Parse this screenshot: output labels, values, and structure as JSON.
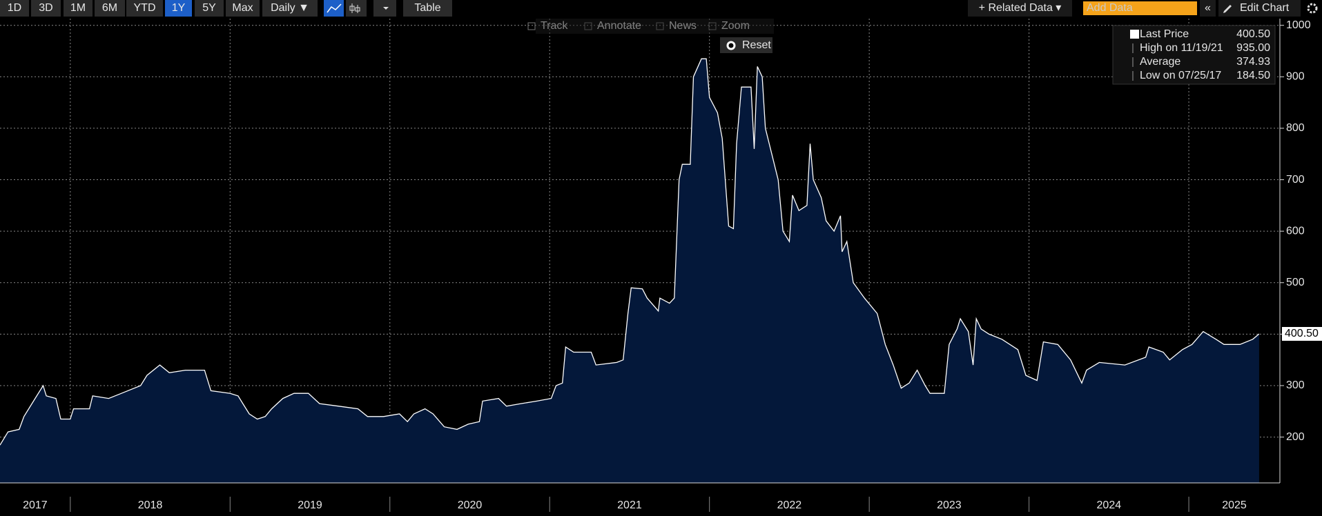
{
  "toolbar": {
    "ranges": [
      "1D",
      "3D",
      "1M",
      "6M",
      "YTD",
      "1Y",
      "5Y",
      "Max"
    ],
    "frequency": "Daily ▼",
    "table": "Table",
    "related": "+ Related Data ▾",
    "add_data": "Add Data",
    "collapse": "«",
    "edit": "Edit Chart",
    "tools": [
      "Track",
      "Annotate",
      "News",
      "Zoom"
    ],
    "reset": "Reset"
  },
  "chart_data": {
    "type": "area",
    "color": "#ffffff",
    "fill": "#04183a",
    "grid": true,
    "x": [
      2017.56,
      2017.61,
      2017.68,
      2017.71,
      2017.78,
      2017.83,
      2017.85,
      2017.91,
      2017.94,
      2018.0,
      2018.02,
      2018.12,
      2018.14,
      2018.24,
      2018.32,
      2018.44,
      2018.48,
      2018.56,
      2018.62,
      2018.72,
      2018.84,
      2018.88,
      2019.0,
      2019.05,
      2019.08,
      2019.12,
      2019.17,
      2019.22,
      2019.26,
      2019.33,
      2019.4,
      2019.49,
      2019.56,
      2019.68,
      2019.8,
      2019.86,
      2019.96,
      2020.06,
      2020.11,
      2020.15,
      2020.22,
      2020.27,
      2020.34,
      2020.42,
      2020.49,
      2020.56,
      2020.58,
      2020.68,
      2020.73,
      2020.82,
      2020.92,
      2021.01,
      2021.04,
      2021.08,
      2021.1,
      2021.15,
      2021.26,
      2021.29,
      2021.42,
      2021.46,
      2021.49,
      2021.51,
      2021.58,
      2021.61,
      2021.68,
      2021.69,
      2021.75,
      2021.78,
      2021.81,
      2021.83,
      2021.88,
      2021.9,
      2021.95,
      2021.98,
      2022.0,
      2022.05,
      2022.08,
      2022.12,
      2022.15,
      2022.17,
      2022.2,
      2022.26,
      2022.28,
      2022.3,
      2022.33,
      2022.35,
      2022.43,
      2022.46,
      2022.5,
      2022.52,
      2022.56,
      2022.61,
      2022.63,
      2022.65,
      2022.7,
      2022.73,
      2022.78,
      2022.82,
      2022.83,
      2022.86,
      2022.9,
      2022.97,
      2023.05,
      2023.1,
      2023.15,
      2023.2,
      2023.25,
      2023.3,
      2023.35,
      2023.38,
      2023.47,
      2023.5,
      2023.55,
      2023.57,
      2023.62,
      2023.65,
      2023.67,
      2023.7,
      2023.75,
      2023.83,
      2023.93,
      2023.98,
      2024.05,
      2024.09,
      2024.18,
      2024.26,
      2024.33,
      2024.36,
      2024.44,
      2024.6,
      2024.73,
      2024.75,
      2024.84,
      2024.88,
      2024.96,
      2025.02,
      2025.09,
      2025.17,
      2025.22,
      2025.32,
      2025.4,
      2025.44
    ],
    "values": [
      184.5,
      210,
      215,
      240,
      275,
      300,
      280,
      275,
      235,
      235,
      255,
      255,
      280,
      275,
      285,
      300,
      320,
      340,
      325,
      330,
      330,
      290,
      285,
      280,
      265,
      245,
      235,
      240,
      255,
      275,
      285,
      285,
      265,
      260,
      255,
      240,
      240,
      245,
      230,
      245,
      255,
      245,
      220,
      215,
      225,
      230,
      270,
      275,
      260,
      265,
      270,
      275,
      300,
      305,
      375,
      365,
      365,
      340,
      345,
      350,
      440,
      490,
      488,
      470,
      445,
      470,
      460,
      470,
      700,
      730,
      730,
      900,
      935,
      935,
      860,
      830,
      780,
      610,
      605,
      770,
      880,
      880,
      760,
      920,
      900,
      800,
      700,
      600,
      580,
      670,
      640,
      650,
      770,
      700,
      665,
      620,
      600,
      630,
      560,
      580,
      500,
      470,
      440,
      380,
      340,
      295,
      305,
      330,
      300,
      285,
      285,
      380,
      410,
      430,
      405,
      340,
      430,
      410,
      400,
      390,
      370,
      320,
      310,
      385,
      380,
      350,
      305,
      330,
      345,
      340,
      355,
      375,
      365,
      350,
      370,
      380,
      405,
      390,
      380,
      380,
      390,
      400.5
    ],
    "xlim": [
      2017.56,
      2025.57
    ],
    "ylim": [
      111,
      1013
    ],
    "yticks": [
      200,
      300,
      400,
      500,
      600,
      700,
      800,
      900,
      1000
    ],
    "x_separators": [
      2018,
      2019,
      2020,
      2021,
      2022,
      2023,
      2024,
      2025
    ],
    "x_labels": [
      "2017",
      "2018",
      "2019",
      "2020",
      "2021",
      "2022",
      "2023",
      "2024",
      "2025"
    ],
    "last_price": {
      "value": 400.5,
      "label": "400.50"
    },
    "legend": [
      {
        "label": "Last Price",
        "value": 400.5,
        "value_label": "400.50"
      },
      {
        "label": "High on 11/19/21",
        "value": 935,
        "value_label": "935.00"
      },
      {
        "label": "Average",
        "value": 374.93,
        "value_label": "374.93"
      },
      {
        "label": "Low on 07/25/17",
        "value": 184.5,
        "value_label": "184.50"
      }
    ]
  }
}
